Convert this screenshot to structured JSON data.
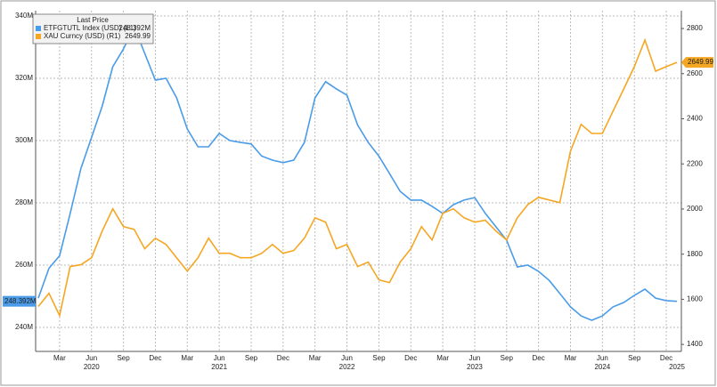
{
  "chart_data": {
    "type": "line",
    "legend_title": "Last Price",
    "x": [
      "2020-01",
      "2020-02",
      "2020-03",
      "2020-04",
      "2020-05",
      "2020-06",
      "2020-07",
      "2020-08",
      "2020-09",
      "2020-10",
      "2020-11",
      "2020-12",
      "2021-01",
      "2021-02",
      "2021-03",
      "2021-04",
      "2021-05",
      "2021-06",
      "2021-07",
      "2021-08",
      "2021-09",
      "2021-10",
      "2021-11",
      "2021-12",
      "2022-01",
      "2022-02",
      "2022-03",
      "2022-04",
      "2022-05",
      "2022-06",
      "2022-07",
      "2022-08",
      "2022-09",
      "2022-10",
      "2022-11",
      "2022-12",
      "2023-01",
      "2023-02",
      "2023-03",
      "2023-04",
      "2023-05",
      "2023-06",
      "2023-07",
      "2023-08",
      "2023-09",
      "2023-10",
      "2023-11",
      "2023-12",
      "2024-01",
      "2024-02",
      "2024-03",
      "2024-04",
      "2024-05",
      "2024-06",
      "2024-07",
      "2024-08",
      "2024-09",
      "2024-10",
      "2024-11",
      "2024-12",
      "2025-01"
    ],
    "series": [
      {
        "name": "ETFGTUTL Index (USD) (L1)",
        "color": "#4a9be8",
        "axis": "y",
        "last_label": "248.392M",
        "values": [
          249.4,
          259,
          263,
          276.6,
          291,
          301,
          311,
          323.7,
          329.4,
          336.6,
          328,
          319.4,
          320,
          313.7,
          303.7,
          298,
          298,
          302.3,
          300,
          299.4,
          298.9,
          295,
          293.7,
          292.9,
          293.7,
          299.4,
          313.7,
          318.9,
          316.6,
          314.6,
          305,
          299.4,
          295,
          289.4,
          283.7,
          280.9,
          280.9,
          278.9,
          276.6,
          279.4,
          280.9,
          281.7,
          276.6,
          272.3,
          268,
          259.4,
          260,
          258,
          255.1,
          250.9,
          246.6,
          243.7,
          242.3,
          243.7,
          246.6,
          248,
          250.3,
          252.3,
          249.4,
          248.6,
          248.392
        ]
      },
      {
        "name": "XAU Curncy (USD) (R1)",
        "color": "#f5a623",
        "axis": "y2",
        "last_label": "2649.99",
        "values": [
          1568,
          1627,
          1528,
          1745,
          1753,
          1784,
          1902,
          2001,
          1922,
          1910,
          1824,
          1871,
          1843,
          1784,
          1725,
          1784,
          1871,
          1804,
          1804,
          1784,
          1784,
          1804,
          1843,
          1804,
          1816,
          1871,
          1961,
          1942,
          1824,
          1843,
          1745,
          1765,
          1686,
          1674,
          1765,
          1824,
          1922,
          1863,
          1981,
          2001,
          1961,
          1942,
          1950,
          1902,
          1863,
          1961,
          2020,
          2052,
          2040,
          2028,
          2257,
          2375,
          2335,
          2335,
          2434,
          2532,
          2631,
          2749,
          2611,
          2631,
          2649.99
        ]
      }
    ],
    "ylim": [
      232.3,
      341.7
    ],
    "yticks": [
      {
        "value": 240,
        "label": "240M"
      },
      {
        "value": 260,
        "label": "260M"
      },
      {
        "value": 280,
        "label": "280M"
      },
      {
        "value": 300,
        "label": "300M"
      },
      {
        "value": 320,
        "label": "320M"
      },
      {
        "value": 340,
        "label": "340M"
      }
    ],
    "y2lim": [
      1369,
      2879
    ],
    "y2ticks": [
      1400,
      1600,
      1800,
      2000,
      2200,
      2400,
      2600,
      2800
    ],
    "xticks": [
      {
        "value": "2020-03",
        "label": "Mar"
      },
      {
        "value": "2020-06",
        "label": "Jun"
      },
      {
        "value": "2020-09",
        "label": "Sep"
      },
      {
        "value": "2020-12",
        "label": "Dec"
      },
      {
        "value": "2021-03",
        "label": "Mar"
      },
      {
        "value": "2021-06",
        "label": "Jun"
      },
      {
        "value": "2021-09",
        "label": "Sep"
      },
      {
        "value": "2021-12",
        "label": "Dec"
      },
      {
        "value": "2022-03",
        "label": "Mar"
      },
      {
        "value": "2022-06",
        "label": "Jun"
      },
      {
        "value": "2022-09",
        "label": "Sep"
      },
      {
        "value": "2022-12",
        "label": "Dec"
      },
      {
        "value": "2023-03",
        "label": "Mar"
      },
      {
        "value": "2023-06",
        "label": "Jun"
      },
      {
        "value": "2023-09",
        "label": "Sep"
      },
      {
        "value": "2023-12",
        "label": "Dec"
      },
      {
        "value": "2024-03",
        "label": "Mar"
      },
      {
        "value": "2024-06",
        "label": "Jun"
      },
      {
        "value": "2024-09",
        "label": "Sep"
      },
      {
        "value": "2024-12",
        "label": "Dec"
      }
    ],
    "year_ticks": [
      {
        "value": "2020-06",
        "label": "2020"
      },
      {
        "value": "2021-06",
        "label": "2021"
      },
      {
        "value": "2022-06",
        "label": "2022"
      },
      {
        "value": "2023-06",
        "label": "2023"
      },
      {
        "value": "2024-06",
        "label": "2024"
      },
      {
        "value": "2025-01",
        "label": "2025"
      }
    ],
    "grid": true
  }
}
